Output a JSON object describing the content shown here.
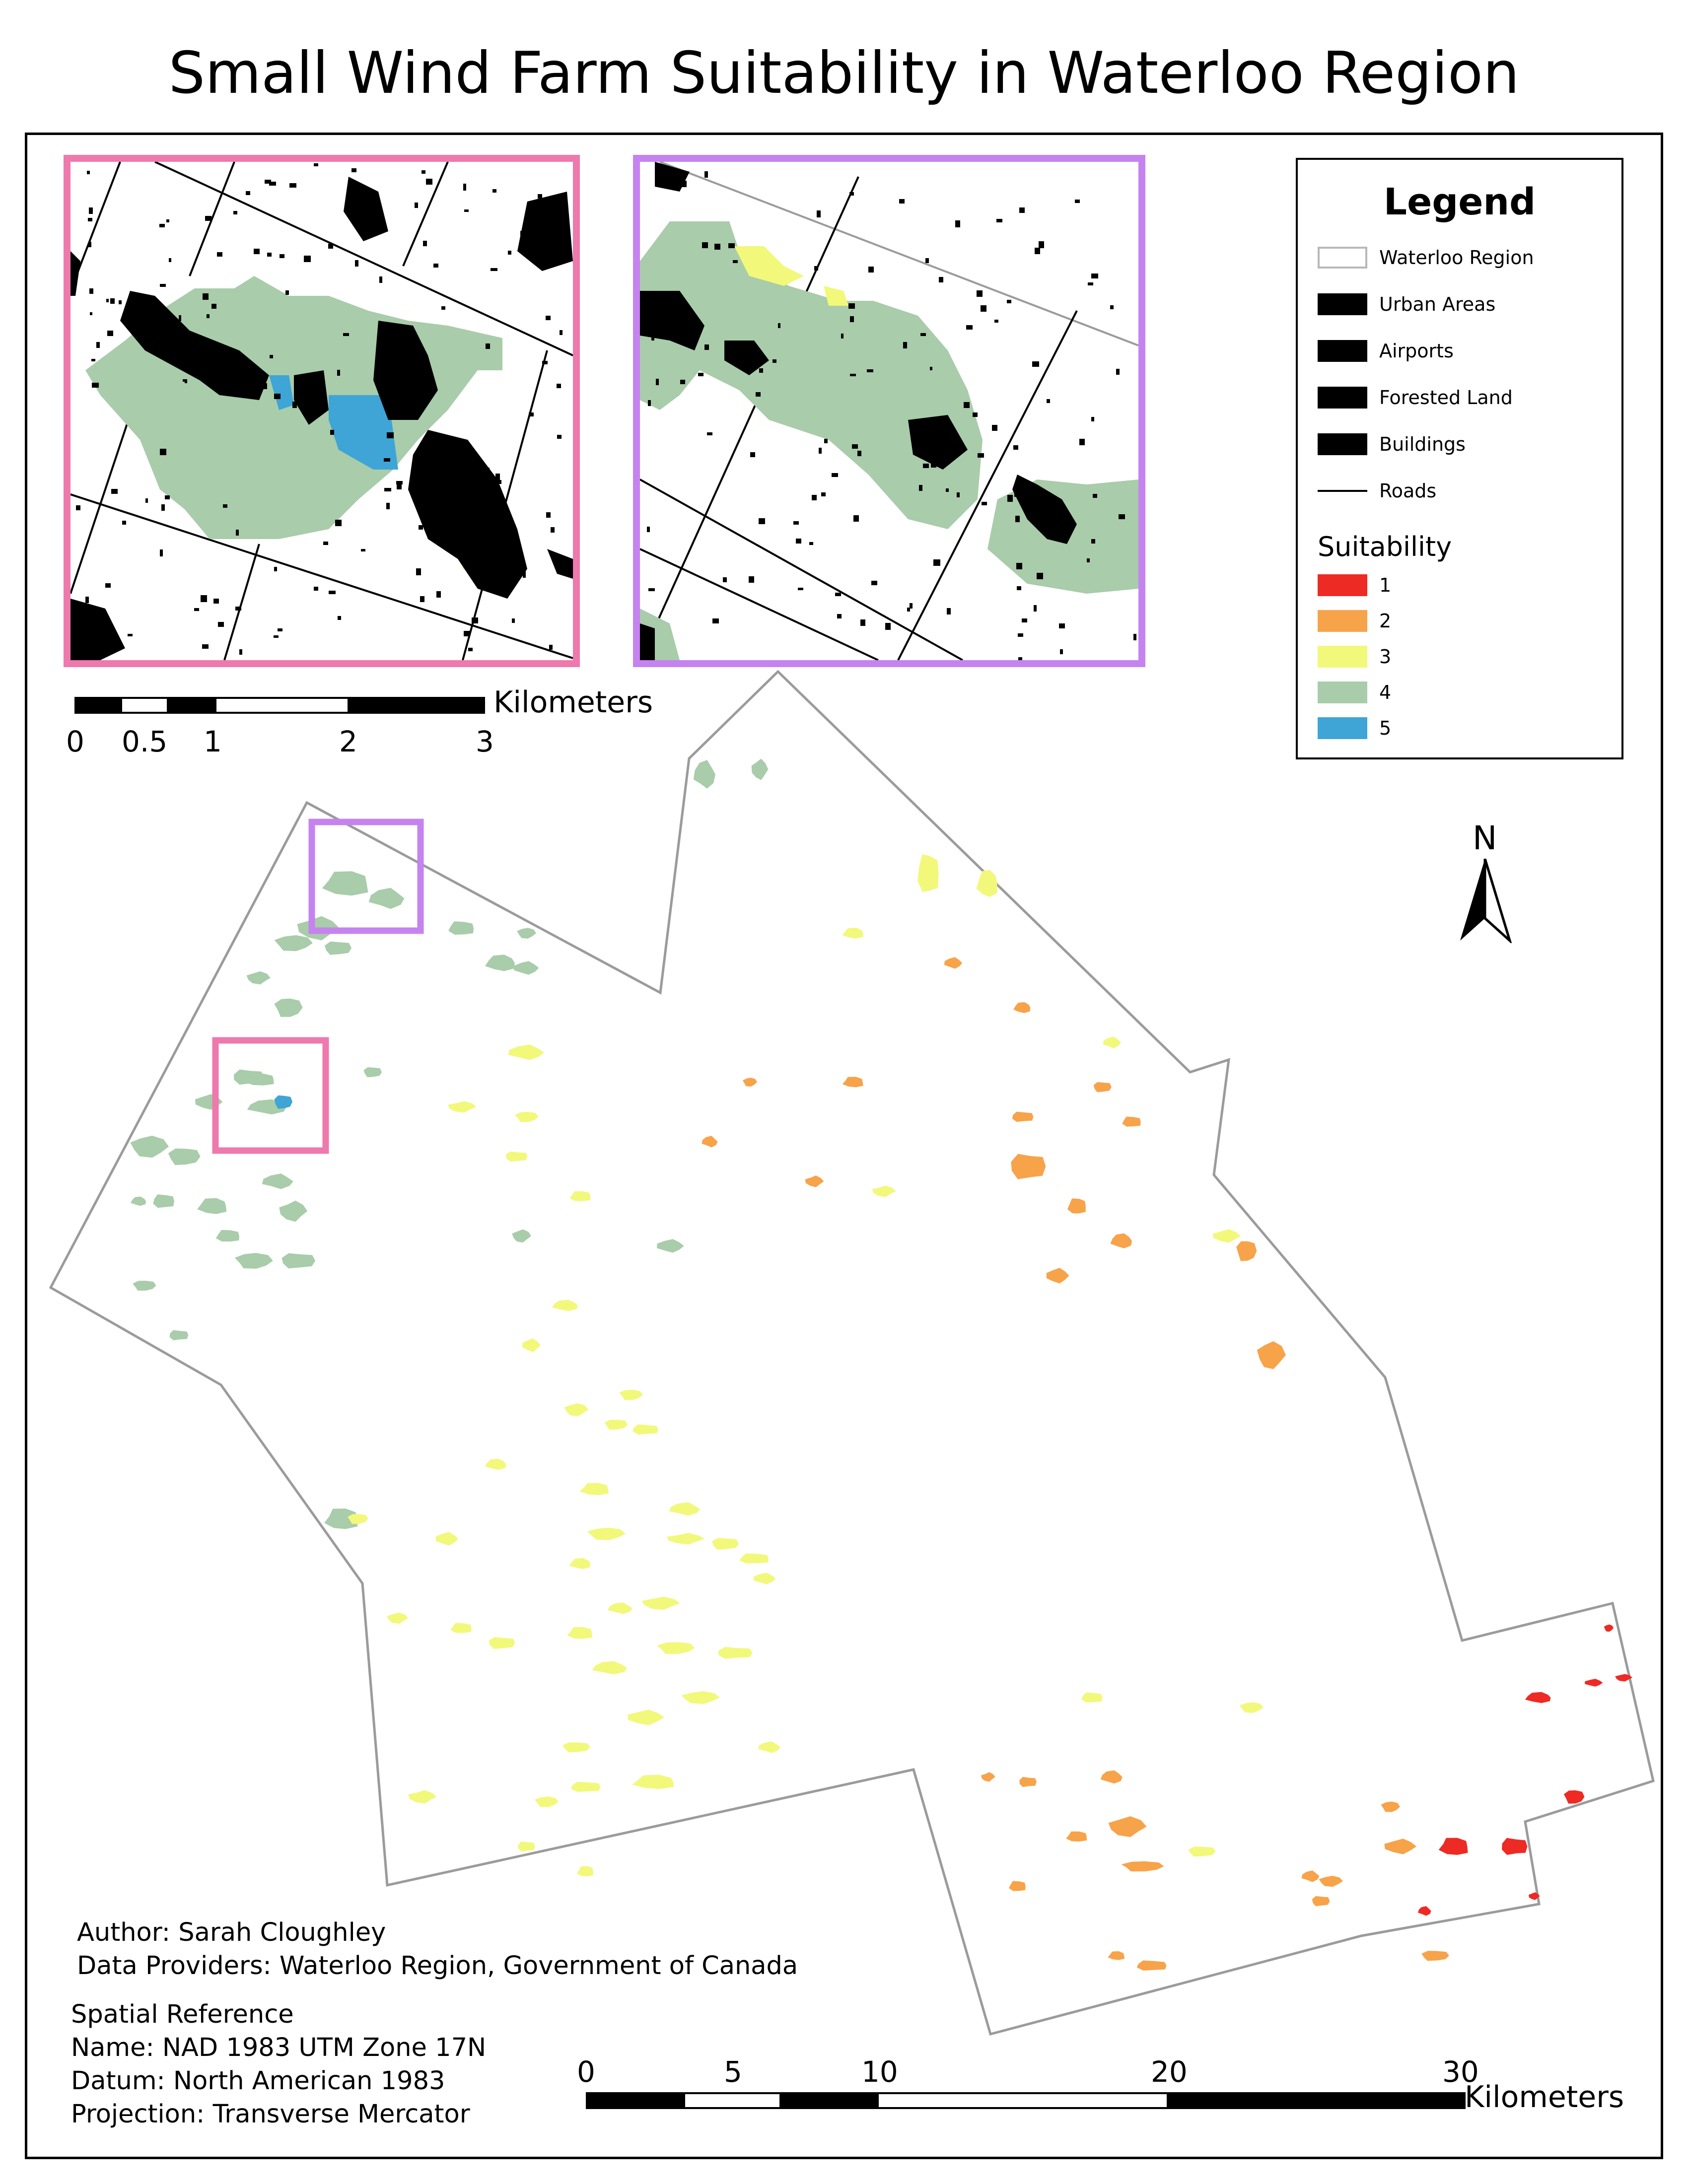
{
  "title": "Small Wind Farm Suitability in Waterloo Region",
  "legend": {
    "heading": "Legend",
    "items": [
      {
        "label": "Waterloo Region",
        "swatch": "outline",
        "color": "#b8b8b8"
      },
      {
        "label": "Urban Areas",
        "swatch": "fill",
        "color": "#000000"
      },
      {
        "label": "Airports",
        "swatch": "fill",
        "color": "#000000"
      },
      {
        "label": "Forested Land",
        "swatch": "fill",
        "color": "#000000"
      },
      {
        "label": "Buildings",
        "swatch": "fill",
        "color": "#000000"
      },
      {
        "label": "Roads",
        "swatch": "line",
        "color": "#000000"
      }
    ],
    "suitability_title": "Suitability",
    "suitability": [
      {
        "label": "1",
        "color": "#ee2a24"
      },
      {
        "label": "2",
        "color": "#f7a34a"
      },
      {
        "label": "3",
        "color": "#f2f87a"
      },
      {
        "label": "4",
        "color": "#a9ccaa"
      },
      {
        "label": "5",
        "color": "#3ea5d6"
      }
    ]
  },
  "inset_scale": {
    "ticks": [
      "0",
      "0.5",
      "1",
      "2",
      "3"
    ],
    "unit": "Kilometers"
  },
  "main_scale": {
    "ticks": [
      "0",
      "5",
      "10",
      "20",
      "30"
    ],
    "unit": "Kilometers"
  },
  "north_label": "N",
  "credits": {
    "author": "Author: Sarah Cloughley",
    "providers": "Data Providers: Waterloo Region, Government of Canada"
  },
  "spatial_reference": {
    "heading": "Spatial Reference",
    "name": "Name: NAD 1983 UTM Zone 17N",
    "datum": "Datum: North American 1983",
    "projection": "Projection: Transverse Mercator"
  },
  "colors": {
    "inset_frame_1": "#ee79ad",
    "inset_frame_2": "#c583ef",
    "boundary": "#9b9b9b"
  }
}
